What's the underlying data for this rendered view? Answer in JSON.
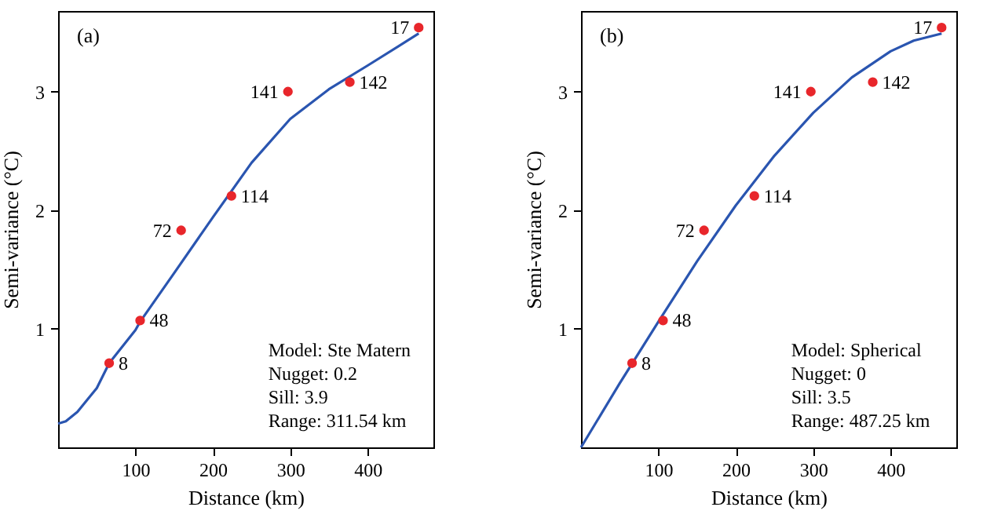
{
  "chart_data": [
    {
      "type": "scatter",
      "title": "(a)",
      "xlabel": "Distance (km)",
      "ylabel": "Semi-variance (°C)",
      "xlim": [
        0,
        485
      ],
      "ylim": [
        0,
        3.68
      ],
      "xticks": [
        100,
        200,
        300,
        400
      ],
      "yticks": [
        1,
        2,
        3
      ],
      "grid": false,
      "series": [
        {
          "type": "line",
          "color": "#2a55b0",
          "x": [
            0,
            10,
            25,
            50,
            66,
            100,
            106,
            150,
            200,
            250,
            300,
            350,
            400,
            466
          ],
          "values": [
            0.2,
            0.22,
            0.3,
            0.5,
            0.71,
            0.99,
            1.06,
            1.47,
            1.94,
            2.4,
            2.77,
            3.02,
            3.22,
            3.49
          ]
        },
        {
          "type": "scatter",
          "marker": "circle",
          "color": "#e8262b",
          "x": [
            66,
            106,
            159,
            224,
            297,
            377,
            466
          ],
          "values": [
            0.71,
            1.07,
            1.83,
            2.12,
            3.0,
            3.08,
            3.54
          ]
        }
      ],
      "annotations": [
        {
          "text": "8",
          "x": 66,
          "y": 0.71
        },
        {
          "text": "48",
          "x": 106,
          "y": 1.07
        },
        {
          "text": "72",
          "x": 159,
          "y": 1.83
        },
        {
          "text": "114",
          "x": 224,
          "y": 2.12
        },
        {
          "text": "141",
          "x": 297,
          "y": 3.0
        },
        {
          "text": "142",
          "x": 377,
          "y": 3.08
        },
        {
          "text": "17",
          "x": 466,
          "y": 3.54
        },
        "Model: Ste Matern",
        "Nugget: 0.2",
        "Sill: 3.9",
        "Range: 311.54 km"
      ]
    },
    {
      "type": "scatter",
      "title": "(b)",
      "xlabel": "Distance (km)",
      "ylabel": "Semi-variance (°C)",
      "xlim": [
        0,
        485
      ],
      "ylim": [
        0,
        3.68
      ],
      "xticks": [
        100,
        200,
        300,
        400
      ],
      "yticks": [
        1,
        2,
        3
      ],
      "grid": false,
      "series": [
        {
          "type": "line",
          "color": "#2a55b0",
          "x": [
            0,
            50,
            100,
            150,
            200,
            250,
            300,
            350,
            400,
            430,
            466
          ],
          "values": [
            0,
            0.54,
            1.06,
            1.57,
            2.04,
            2.46,
            2.82,
            3.12,
            3.34,
            3.43,
            3.49
          ]
        },
        {
          "type": "scatter",
          "marker": "circle",
          "color": "#e8262b",
          "x": [
            66,
            106,
            159,
            224,
            297,
            377,
            466
          ],
          "values": [
            0.71,
            1.07,
            1.83,
            2.12,
            3.0,
            3.08,
            3.54
          ]
        }
      ],
      "annotations": [
        {
          "text": "8",
          "x": 66,
          "y": 0.71
        },
        {
          "text": "48",
          "x": 106,
          "y": 1.07
        },
        {
          "text": "72",
          "x": 159,
          "y": 1.83
        },
        {
          "text": "114",
          "x": 224,
          "y": 2.12
        },
        {
          "text": "141",
          "x": 297,
          "y": 3.0
        },
        {
          "text": "142",
          "x": 377,
          "y": 3.08
        },
        {
          "text": "17",
          "x": 466,
          "y": 3.54
        },
        "Model: Spherical",
        "Nugget: 0",
        "Sill: 3.5",
        "Range: 487.25 km"
      ]
    }
  ]
}
